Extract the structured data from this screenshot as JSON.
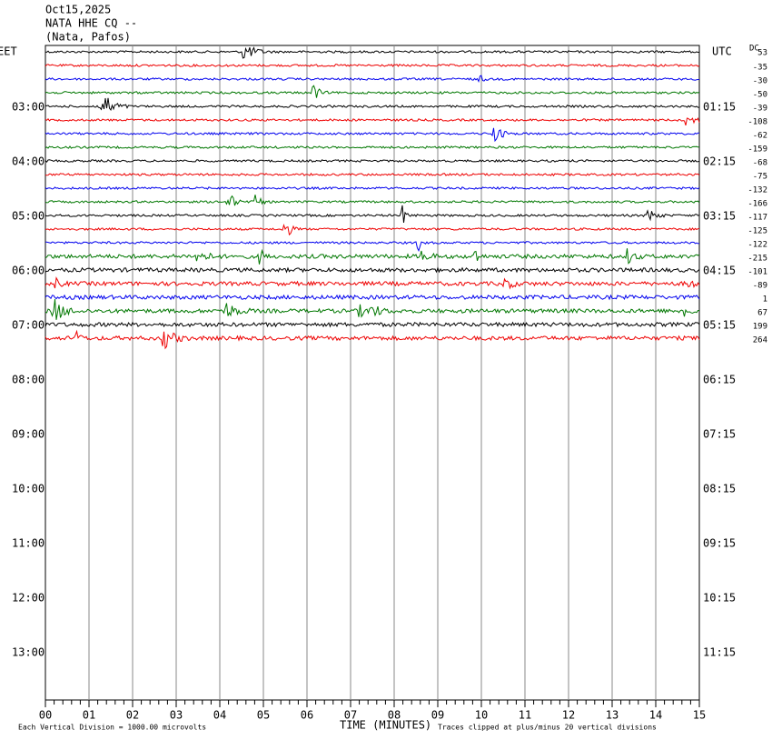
{
  "header": {
    "date": "Oct15,2025",
    "station": "NATA HHE CQ --",
    "location": "(Nata, Pafos)"
  },
  "left_label": "EET",
  "right_label": "UTC",
  "dc_label": "DC",
  "hours_left": [
    "03:00",
    "04:00",
    "05:00",
    "06:00",
    "07:00",
    "08:00",
    "09:00",
    "10:00",
    "11:00",
    "12:00",
    "13:00"
  ],
  "hours_right": [
    "01:15",
    "02:15",
    "03:15",
    "04:15",
    "05:15",
    "06:15",
    "07:15",
    "08:15",
    "09:15",
    "10:15",
    "11:15"
  ],
  "dc_offsets": [
    53,
    -35,
    -30,
    -50,
    -39,
    -108,
    -62,
    -159,
    -68,
    -75,
    -132,
    -166,
    -117,
    -125,
    -122,
    -215,
    -101,
    -89,
    1,
    67,
    199,
    264
  ],
  "minutes": [
    "00",
    "01",
    "02",
    "03",
    "04",
    "05",
    "06",
    "07",
    "08",
    "09",
    "10",
    "11",
    "12",
    "13",
    "14",
    "15"
  ],
  "footer": {
    "scale": "Each Vertical Division = 1000.00 microvolts",
    "x_label": "TIME (MINUTES)",
    "clip": "Traces clipped at plus/minus 20 vertical divisions"
  }
}
